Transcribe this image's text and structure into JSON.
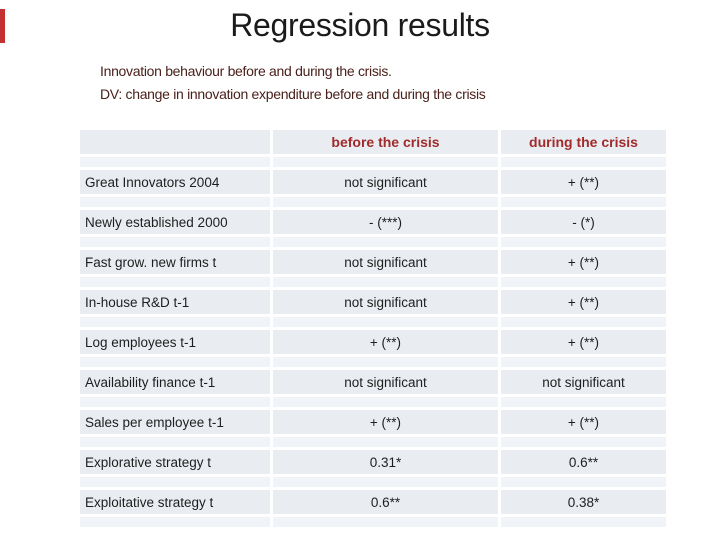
{
  "slide": {
    "title": "Regression results",
    "subtitle_line1": "Innovation behaviour before and during the crisis.",
    "subtitle_line2": "DV: change in innovation expenditure before and during the crisis"
  },
  "colors": {
    "accent_bar": "#c43131",
    "header_text": "#a12b2b",
    "band": "#e9edf2",
    "band_light": "#f0f3f7",
    "body_text": "#1e1e1e",
    "subtitle_text": "#4a201a"
  },
  "table": {
    "headers": [
      "",
      "before the crisis",
      "during the crisis"
    ],
    "rows": [
      {
        "label": "Great Innovators 2004",
        "before": "not significant",
        "during": "+ (**)"
      },
      {
        "label": "Newly established 2000",
        "before": "- (***)",
        "during": "- (*)"
      },
      {
        "label": "Fast grow. new firms t",
        "before": "not significant",
        "during": "+ (**)"
      },
      {
        "label": "In-house R&D t-1",
        "before": "not significant",
        "during": "+ (**)"
      },
      {
        "label": "Log employees t-1",
        "before": "+ (**)",
        "during": "+ (**)"
      },
      {
        "label": "Availability finance t-1",
        "before": "not significant",
        "during": "not significant"
      },
      {
        "label": "Sales per employee t-1",
        "before": "+ (**)",
        "during": "+ (**)"
      },
      {
        "label": "Explorative strategy t",
        "before": "0.31*",
        "during": "0.6**"
      },
      {
        "label": "Exploitative strategy t",
        "before": "0.6**",
        "during": "0.38*"
      }
    ]
  }
}
